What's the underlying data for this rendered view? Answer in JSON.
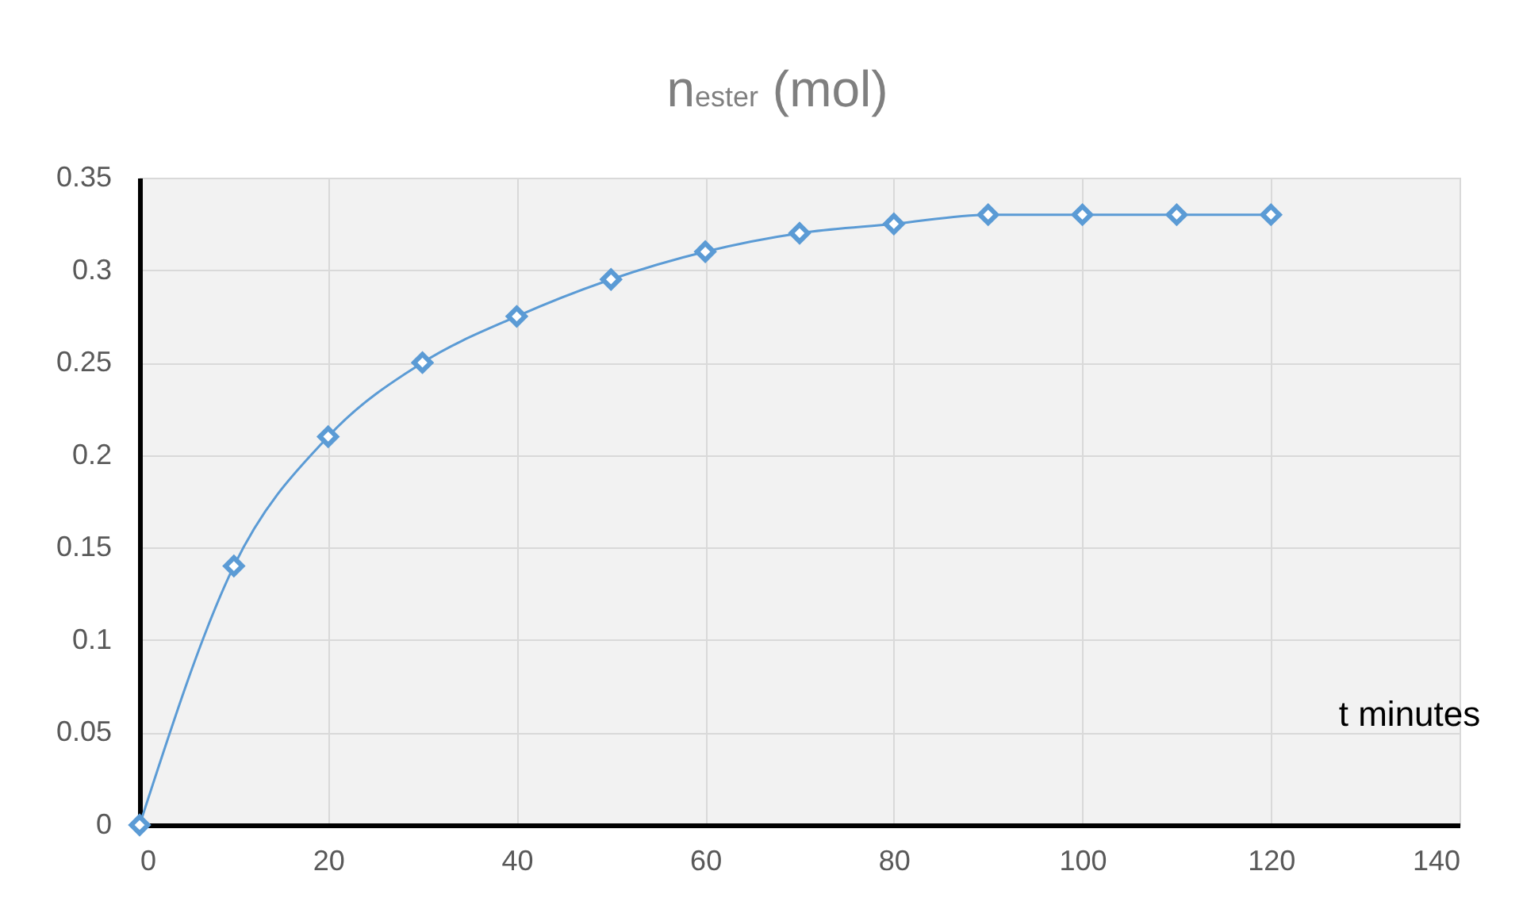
{
  "chart_data": {
    "type": "line",
    "title": "n$_{ester}$ (mol)",
    "xlabel": "t minutes",
    "x": [
      0,
      10,
      20,
      30,
      40,
      50,
      60,
      70,
      80,
      90,
      100,
      110,
      120
    ],
    "series": [
      {
        "color": "#5b9bd5",
        "values": [
          0,
          0.14,
          0.21,
          0.25,
          0.275,
          0.295,
          0.31,
          0.32,
          0.325,
          0.33,
          0.33,
          0.33,
          0.33
        ]
      }
    ],
    "xlim": [
      0,
      140
    ],
    "xticks": [
      0,
      20,
      40,
      60,
      80,
      100,
      120,
      140
    ],
    "ylim": [
      0,
      0.35
    ],
    "yticks": [
      0,
      0.05,
      0.1,
      0.15,
      0.2,
      0.25,
      0.3,
      0.35
    ],
    "grid": true,
    "marker": "diamond"
  }
}
